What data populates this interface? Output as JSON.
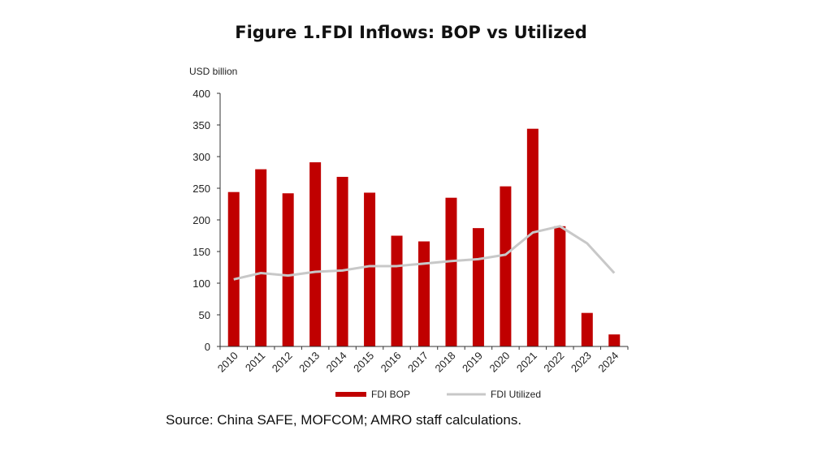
{
  "title": "Figure 1.FDI Inflows: BOP vs Utilized",
  "source": "Source: China SAFE, MOFCOM; AMRO staff calculations.",
  "chart_data": {
    "type": "bar",
    "ylabel": "USD billion",
    "ylim": [
      0,
      400
    ],
    "yticks": [
      0,
      50,
      100,
      150,
      200,
      250,
      300,
      350,
      400
    ],
    "categories": [
      "2010",
      "2011",
      "2012",
      "2013",
      "2014",
      "2015",
      "2016",
      "2017",
      "2018",
      "2019",
      "2020",
      "2021",
      "2022",
      "2023",
      "2024"
    ],
    "series": [
      {
        "name": "FDI BOP",
        "type": "bar",
        "color": "#c00000",
        "values": [
          244,
          280,
          242,
          291,
          268,
          243,
          175,
          166,
          235,
          187,
          253,
          344,
          190,
          53,
          19
        ]
      },
      {
        "name": "FDI Utilized",
        "type": "line",
        "color": "#c8c8c8",
        "values": [
          106,
          116,
          112,
          118,
          120,
          127,
          127,
          131,
          135,
          138,
          145,
          180,
          190,
          163,
          116
        ]
      }
    ],
    "grid": false,
    "legend": "bottom"
  }
}
